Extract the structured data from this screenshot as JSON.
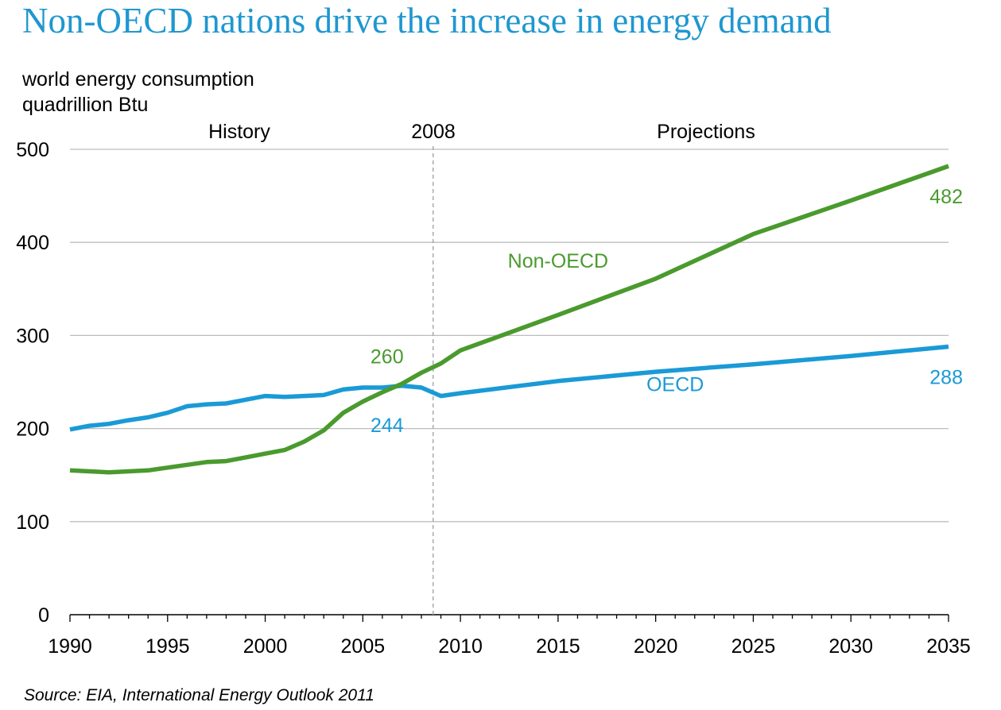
{
  "title": "Non-OECD nations drive the increase in energy demand",
  "ylabel_line1": "world energy consumption",
  "ylabel_line2": "quadrillion Btu",
  "source": "Source:  EIA, International Energy Outlook 2011",
  "colors": {
    "title": "#1F97D0",
    "oecd": "#1A9AD6",
    "non_oecd": "#4A9A2E",
    "grid": "#BDBDBD"
  },
  "chart_data": {
    "type": "line",
    "title": "Non-OECD nations drive the increase in energy demand",
    "ylabel": "world energy consumption quadrillion Btu",
    "xlabel": "",
    "xlim": [
      1990,
      2035
    ],
    "ylim": [
      0,
      500
    ],
    "yticks": [
      0,
      100,
      200,
      300,
      400,
      500
    ],
    "xticks": [
      1990,
      1995,
      2000,
      2005,
      2010,
      2015,
      2020,
      2025,
      2030,
      2035
    ],
    "grid": true,
    "divider_year": 2008.6,
    "region_labels": {
      "history": "History",
      "divider": "2008",
      "projections": "Projections"
    },
    "series": [
      {
        "name": "OECD",
        "color": "#1A9AD6",
        "x": [
          1990,
          1991,
          1992,
          1993,
          1994,
          1995,
          1996,
          1997,
          1998,
          1999,
          2000,
          2001,
          2002,
          2003,
          2004,
          2005,
          2006,
          2007,
          2008,
          2009,
          2010,
          2015,
          2020,
          2025,
          2030,
          2035
        ],
        "y": [
          199,
          203,
          205,
          209,
          212,
          217,
          224,
          226,
          227,
          231,
          235,
          234,
          235,
          236,
          242,
          244,
          244,
          246,
          244,
          235,
          238,
          251,
          261,
          269,
          278,
          288
        ]
      },
      {
        "name": "Non-OECD",
        "color": "#4A9A2E",
        "x": [
          1990,
          1991,
          1992,
          1993,
          1994,
          1995,
          1996,
          1997,
          1998,
          1999,
          2000,
          2001,
          2002,
          2003,
          2004,
          2005,
          2006,
          2007,
          2008,
          2009,
          2010,
          2015,
          2020,
          2025,
          2030,
          2035
        ],
        "y": [
          155,
          154,
          153,
          154,
          155,
          158,
          161,
          164,
          165,
          169,
          173,
          177,
          186,
          198,
          217,
          229,
          239,
          248,
          260,
          270,
          284,
          322,
          361,
          409,
          445,
          482
        ]
      }
    ],
    "annotations": [
      {
        "text": "260",
        "series": "Non-OECD",
        "x": 2007.7,
        "y": 260
      },
      {
        "text": "244",
        "series": "OECD",
        "x": 2007.5,
        "y": 244
      },
      {
        "text": "482",
        "series": "Non-OECD",
        "x": 2035,
        "y": 482
      },
      {
        "text": "288",
        "series": "OECD",
        "x": 2035,
        "y": 288
      },
      {
        "text": "Non-OECD",
        "series": "Non-OECD",
        "x": 2015,
        "y": 373
      },
      {
        "text": "OECD",
        "series": "OECD",
        "x": 2021,
        "y": 240
      }
    ]
  }
}
